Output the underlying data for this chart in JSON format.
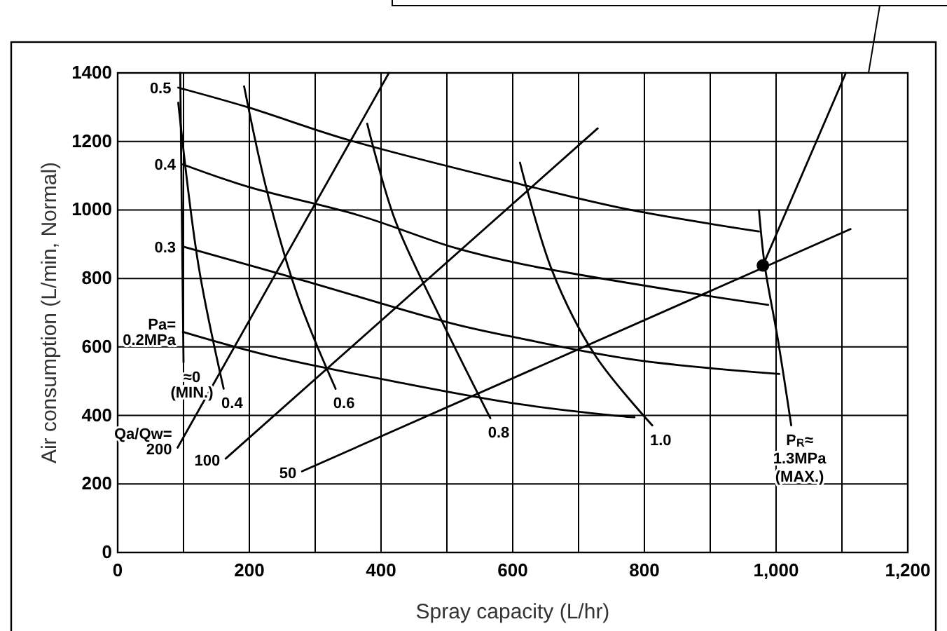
{
  "chart_data": {
    "type": "line",
    "xlabel": "Spray capacity (L/hr)",
    "ylabel": "Air consumption (L/min, Normal)",
    "xlim": [
      0,
      1200
    ],
    "ylim": [
      0,
      1400
    ],
    "xticks": [
      0,
      {
        "value": 100,
        "label": null
      },
      200,
      {
        "value": 300,
        "label": null
      },
      400,
      {
        "value": 500,
        "label": null
      },
      600,
      {
        "value": 700,
        "label": null
      },
      800,
      {
        "value": 900,
        "label": null
      },
      {
        "value": 1000,
        "label": "1,000"
      },
      {
        "value": 1100,
        "label": null
      },
      {
        "value": 1200,
        "label": "1,200"
      }
    ],
    "yticks": [
      0,
      200,
      400,
      600,
      800,
      1000,
      1200,
      1400
    ],
    "grid": true,
    "marker": "none",
    "line_style": "solid",
    "series": [
      {
        "color": "#000000",
        "x": [
          92,
          199,
          351,
          614,
          774,
          974
        ],
        "values": [
          1357,
          1299,
          1204,
          1074,
          1002,
          937
        ]
      },
      {
        "color": "#000000",
        "x": [
          99,
          199,
          365,
          511,
          614,
          884,
          988
        ],
        "values": [
          1133,
          1067,
          985,
          890,
          842,
          753,
          723
        ]
      },
      {
        "color": "#000000",
        "x": [
          99,
          282,
          511,
          614,
          787,
          1005
        ],
        "values": [
          893,
          794,
          667,
          624,
          562,
          521
        ]
      },
      {
        "color": "#000000",
        "x": [
          99,
          227,
          434,
          614,
          774,
          785
        ],
        "values": [
          644,
          576,
          494,
          432,
          396,
          395
        ]
      },
      {
        "color": "#000000",
        "x": [
          95,
          100
        ],
        "values": [
          1400,
          555
        ]
      },
      {
        "color": "#000000",
        "x": [
          92,
          123,
          161
        ],
        "values": [
          1313,
          835,
          478
        ]
      },
      {
        "color": "#000000",
        "x": [
          192,
          227,
          275,
          331
        ],
        "values": [
          1361,
          1053,
          740,
          478
        ]
      },
      {
        "color": "#000000",
        "x": [
          379,
          421,
          490,
          566
        ],
        "values": [
          1252,
          972,
          685,
          392
        ]
      },
      {
        "color": "#000000",
        "x": [
          611,
          660,
          725,
          812
        ],
        "values": [
          1138,
          822,
          576,
          371
        ]
      },
      {
        "color": "#000000",
        "x": [
          974,
          983,
          1002,
          1023
        ],
        "values": [
          999,
          835,
          630,
          371
        ]
      },
      {
        "color": "#000000",
        "x": [
          91,
          412
        ],
        "values": [
          306,
          1400
        ]
      },
      {
        "color": "#000000",
        "x": [
          164,
          729
        ],
        "values": [
          274,
          1238
        ]
      },
      {
        "color": "#000000",
        "x": [
          280,
          1113
        ],
        "values": [
          237,
          944
        ]
      },
      {
        "color": "#000000",
        "x": [
          980,
          1106
        ],
        "values": [
          838,
          1400
        ]
      },
      {
        "type": "scatter",
        "marker": "circle",
        "color": "#000000",
        "x": [
          980
        ],
        "values": [
          838
        ]
      }
    ],
    "annotations": [
      {
        "text": "0.5",
        "x": 92,
        "y": 1357
      },
      {
        "text": "0.4",
        "x": 99,
        "y": 1133
      },
      {
        "text": "0.3",
        "x": 99,
        "y": 893
      },
      {
        "text": "Pa=\n0.2MPa",
        "x": 99,
        "y": 644
      },
      {
        "text": "≈0\n(MIN.)",
        "x": 100,
        "y": 555
      },
      {
        "text": "0.4",
        "x": 161,
        "y": 478
      },
      {
        "text": "0.6",
        "x": 331,
        "y": 478
      },
      {
        "text": "0.8",
        "x": 566,
        "y": 392
      },
      {
        "text": "1.0",
        "x": 812,
        "y": 371
      },
      {
        "text": "P$_{R}$≈\n1.3MPa\n(MAX.)",
        "x": 1023,
        "y": 371
      },
      {
        "text": "Qa/Qw=\n200",
        "x": 91,
        "y": 306
      },
      {
        "text": "100",
        "x": 164,
        "y": 274
      },
      {
        "text": "50",
        "x": 280,
        "y": 237
      }
    ]
  }
}
